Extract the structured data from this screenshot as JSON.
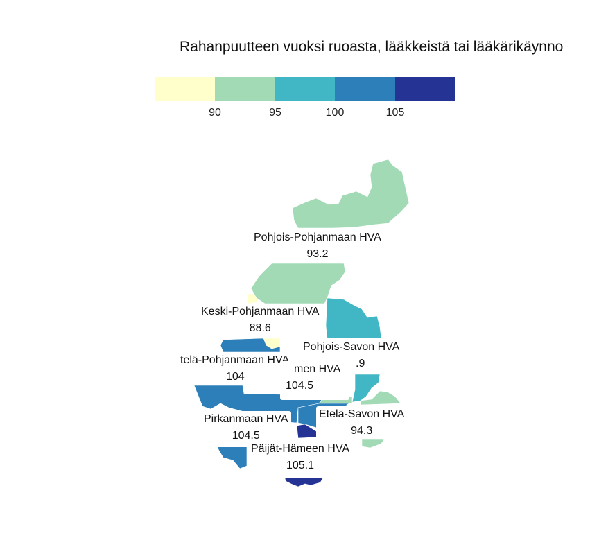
{
  "title": "Rahanpuutteen vuoksi ruoasta, lääkkeistä tai lääkärikäynno",
  "legend": {
    "colors": [
      "#ffffcc",
      "#a1dab4",
      "#41b6c4",
      "#2c7fb8",
      "#253494"
    ],
    "ticks": [
      "90",
      "95",
      "100",
      "105"
    ]
  },
  "regions": [
    {
      "name": "Pohjois-Pohjanmaan HVA",
      "value": "93.2",
      "color": "#a1dab4"
    },
    {
      "name": "Keski-Pohjanmaan HVA",
      "value": "88.6",
      "color": "#ffffcc"
    },
    {
      "name": "Pohjois-Savon HVA",
      "value": ".9",
      "color": "#41b6c4"
    },
    {
      "name": "telä-Pohjanmaan HVA",
      "value": "104",
      "color": "#2c7fb8"
    },
    {
      "name": "men HVA",
      "value": "104.5",
      "color": "#2c7fb8"
    },
    {
      "name": "Pirkanmaan HVA",
      "value": "104.5",
      "color": "#2c7fb8"
    },
    {
      "name": "Etelä-Savon HVA",
      "value": "94.3",
      "color": "#a1dab4"
    },
    {
      "name": "Päijät-Hämeen HVA",
      "value": "105.1",
      "color": "#253494"
    }
  ]
}
